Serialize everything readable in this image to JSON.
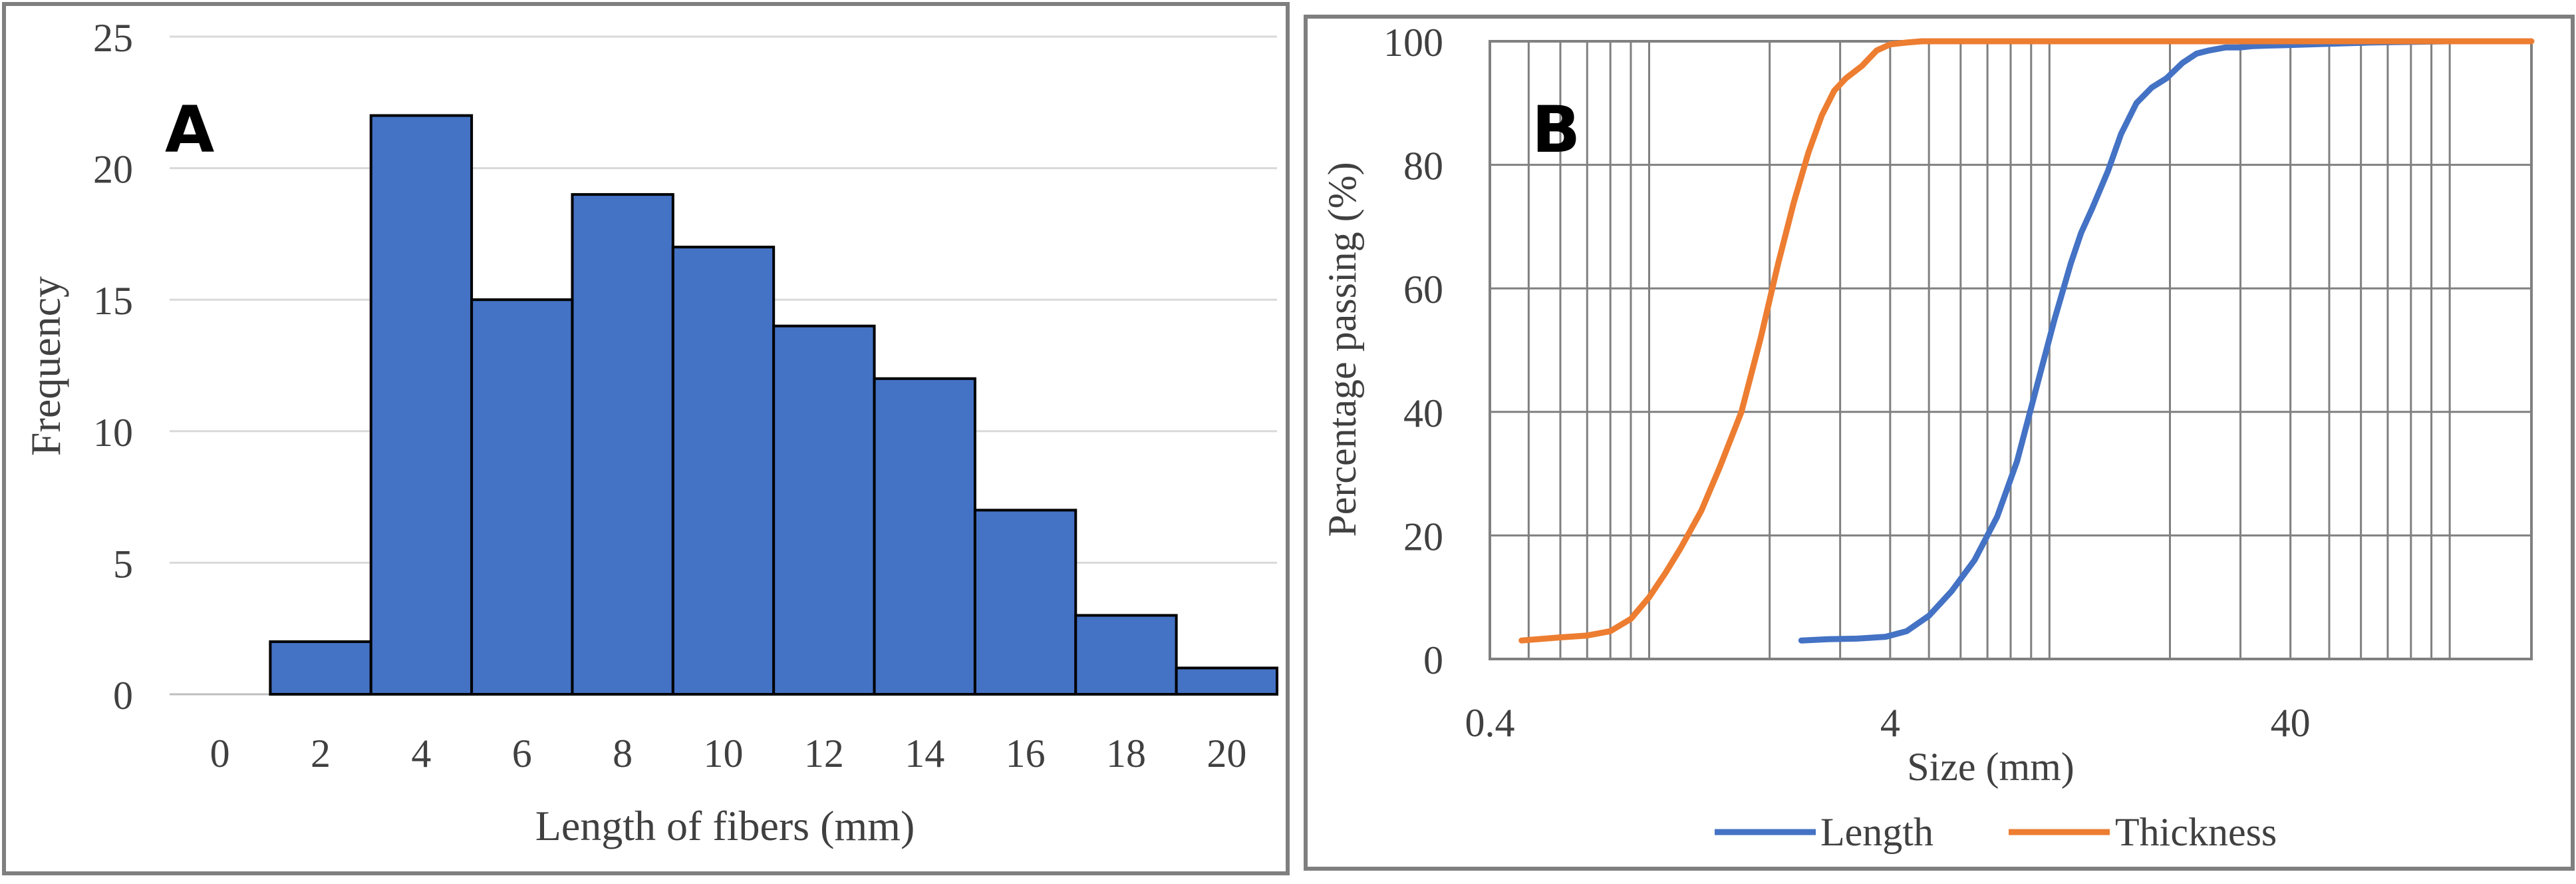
{
  "colors": {
    "bar_fill": "#4472C4",
    "bar_stroke": "#000000",
    "length_line": "#4472C4",
    "thickness_line": "#ED7D31",
    "grid": "#808080",
    "frame": "#7F7F7F"
  },
  "chart_data": [
    {
      "type": "bar",
      "panel_label": "A",
      "title": "",
      "xlabel": "Length of fibers (mm)",
      "ylabel": "Frequency",
      "xlim": [
        -1,
        21
      ],
      "ylim": [
        0,
        25
      ],
      "xticks": [
        0,
        2,
        4,
        6,
        8,
        10,
        12,
        14,
        16,
        18,
        20
      ],
      "yticks": [
        0,
        5,
        10,
        15,
        20,
        25
      ],
      "bins": [
        {
          "from": 1,
          "to": 3,
          "value": 2
        },
        {
          "from": 3,
          "to": 5,
          "value": 22
        },
        {
          "from": 5,
          "to": 7,
          "value": 15
        },
        {
          "from": 7,
          "to": 9,
          "value": 19
        },
        {
          "from": 9,
          "to": 11,
          "value": 17
        },
        {
          "from": 11,
          "to": 13,
          "value": 14
        },
        {
          "from": 13,
          "to": 15,
          "value": 12
        },
        {
          "from": 15,
          "to": 17,
          "value": 7
        },
        {
          "from": 17,
          "to": 19,
          "value": 3
        },
        {
          "from": 19,
          "to": 21,
          "value": 1
        }
      ],
      "grid": "horizontal"
    },
    {
      "type": "line",
      "panel_label": "B",
      "title": "",
      "xlabel": "Size (mm)",
      "ylabel": "Percentage passing (%)",
      "xscale": "log",
      "xlim": [
        0.4,
        160
      ],
      "ylim": [
        0,
        100
      ],
      "xticks": [
        {
          "value": 0.4,
          "label": "0.4"
        },
        {
          "value": 4,
          "label": "4"
        },
        {
          "value": 40,
          "label": "40"
        }
      ],
      "yticks": [
        0,
        20,
        40,
        60,
        80,
        100
      ],
      "minor_grid_x": [
        0.5,
        0.6,
        0.7,
        0.8,
        0.9,
        1,
        2,
        3,
        4,
        5,
        6,
        7,
        8,
        9,
        10,
        20,
        30,
        40,
        50,
        60,
        70,
        80,
        90,
        100
      ],
      "grid": "both",
      "legend_position": "bottom",
      "series": [
        {
          "name": "Length",
          "color": "#4472C4",
          "x": [
            2.4,
            2.8,
            3.3,
            3.9,
            4.4,
            5.0,
            5.7,
            6.5,
            7.4,
            8.3,
            9.2,
            10.3,
            11.3,
            12.0,
            12.8,
            14.0,
            15.1,
            16.5,
            18.0,
            19.6,
            21.5,
            23.3,
            25.0,
            27.5,
            30.0,
            32.0,
            35.0,
            40.0,
            50.0,
            63.0,
            80.0,
            100.0,
            150.0
          ],
          "y": [
            3,
            3.2,
            3.3,
            3.6,
            4.5,
            7,
            11,
            16,
            23,
            32,
            43,
            55,
            64,
            69,
            73,
            79,
            85,
            90,
            92.5,
            94,
            96.5,
            98,
            98.5,
            99,
            99,
            99.2,
            99.3,
            99.4,
            99.6,
            99.8,
            99.9,
            100,
            100
          ]
        },
        {
          "name": "Thickness",
          "color": "#ED7D31",
          "x": [
            0.48,
            0.6,
            0.7,
            0.8,
            0.9,
            1.0,
            1.1,
            1.2,
            1.35,
            1.5,
            1.7,
            1.9,
            2.1,
            2.3,
            2.5,
            2.7,
            2.9,
            3.1,
            3.4,
            3.7,
            4.0,
            4.4,
            4.8,
            5.2,
            6.0,
            8.0,
            12.0,
            20.0,
            40.0,
            80.0,
            160.0
          ],
          "y": [
            3,
            3.5,
            3.8,
            4.5,
            6.5,
            10,
            14,
            18,
            24,
            31,
            40,
            52,
            64,
            74,
            82,
            88,
            92,
            94,
            96,
            98.5,
            99.5,
            99.8,
            100,
            100,
            100,
            100,
            100,
            100,
            100,
            100,
            100
          ]
        }
      ]
    }
  ]
}
